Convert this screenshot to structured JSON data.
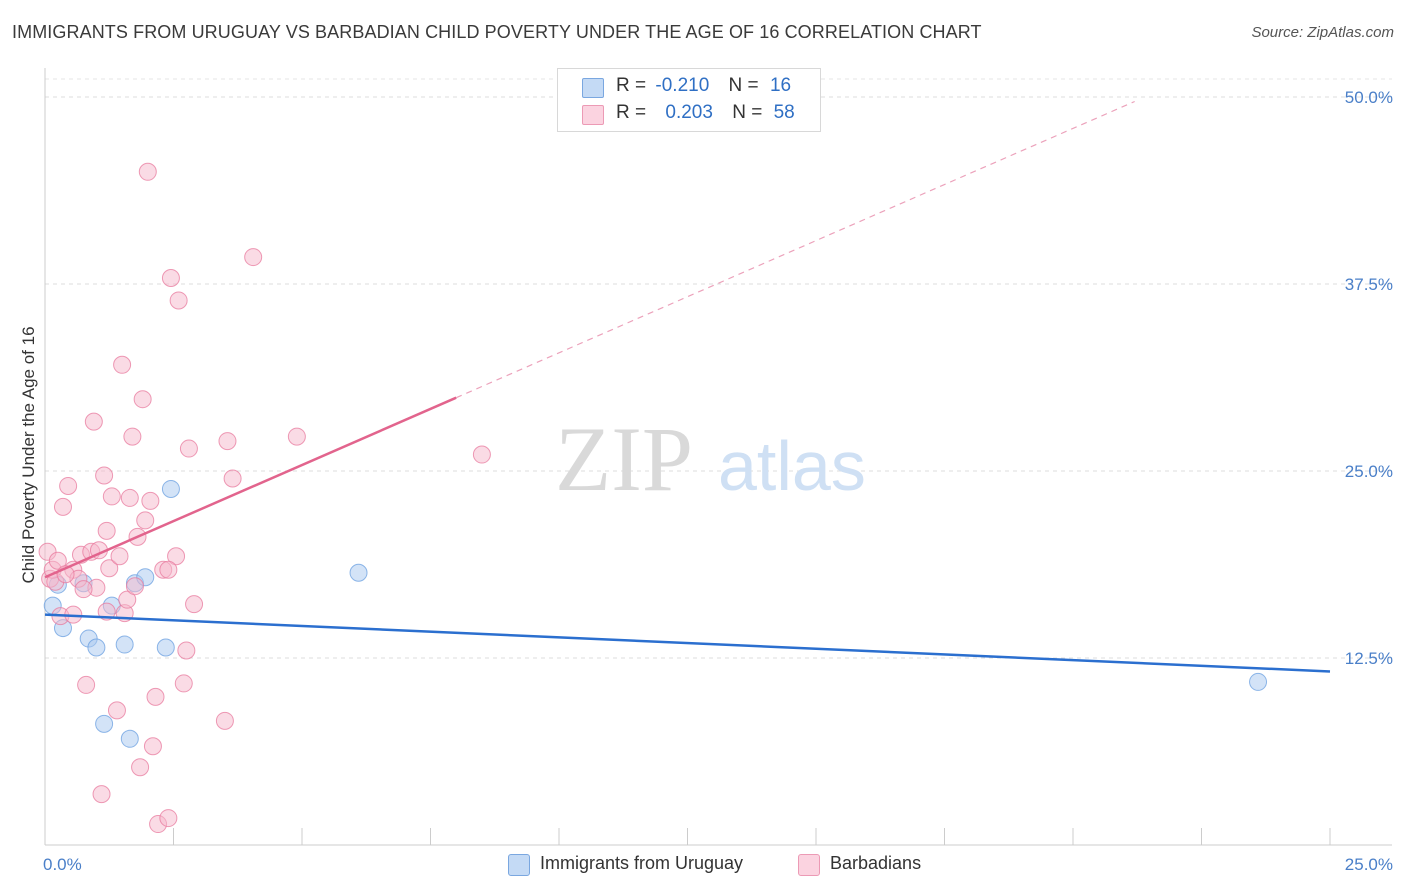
{
  "title": "IMMIGRANTS FROM URUGUAY VS BARBADIAN CHILD POVERTY UNDER THE AGE OF 16 CORRELATION CHART",
  "source": "Source: ZipAtlas.com",
  "watermark": {
    "zip": "ZIP",
    "atlas": "atlas"
  },
  "legend": {
    "rows": [
      {
        "r_label": "R =",
        "r_value": "-0.210",
        "n_label": "N =",
        "n_value": "16",
        "color": "#a8c8f0"
      },
      {
        "r_label": "R =",
        "r_value": "0.203",
        "n_label": "N =",
        "n_value": "58",
        "color": "#f5b8cc"
      }
    ]
  },
  "bottom_legend": [
    {
      "label": "Immigrants from Uruguay",
      "color": "#a8c8f0"
    },
    {
      "label": "Barbadians",
      "color": "#f5b8cc"
    }
  ],
  "chart_data": {
    "type": "scatter",
    "title": "IMMIGRANTS FROM URUGUAY VS BARBADIAN CHILD POVERTY UNDER THE AGE OF 16 CORRELATION CHART",
    "xlabel": "",
    "ylabel": "Child Poverty Under the Age of 16",
    "xlim": [
      0,
      25
    ],
    "ylim": [
      0,
      50
    ],
    "x_tick_labels": [
      "0.0%",
      "25.0%"
    ],
    "y_ticks": [
      12.5,
      25.0,
      37.5,
      50.0
    ],
    "y_tick_labels": [
      "12.5%",
      "25.0%",
      "37.5%",
      "50.0%"
    ],
    "grid": true,
    "series": [
      {
        "name": "Immigrants from Uruguay",
        "color": "#6a9fe0",
        "fill": "#a8c8f0",
        "points": [
          [
            0.15,
            16.0
          ],
          [
            0.25,
            17.4
          ],
          [
            0.35,
            14.5
          ],
          [
            0.75,
            17.5
          ],
          [
            0.85,
            13.8
          ],
          [
            1.0,
            13.2
          ],
          [
            1.3,
            16.0
          ],
          [
            1.55,
            13.4
          ],
          [
            1.75,
            17.5
          ],
          [
            1.95,
            17.9
          ],
          [
            2.35,
            13.2
          ],
          [
            2.45,
            23.8
          ],
          [
            1.15,
            8.1
          ],
          [
            1.65,
            7.1
          ],
          [
            6.1,
            18.2
          ],
          [
            23.6,
            10.9
          ]
        ],
        "trend": {
          "x": [
            0,
            25
          ],
          "y": [
            15.4,
            11.6
          ]
        }
      },
      {
        "name": "Barbadians",
        "color": "#e8799d",
        "fill": "#f5b8cc",
        "points": [
          [
            0.05,
            19.6
          ],
          [
            0.1,
            17.8
          ],
          [
            0.15,
            18.4
          ],
          [
            0.2,
            17.6
          ],
          [
            0.25,
            19.0
          ],
          [
            0.3,
            15.3
          ],
          [
            0.35,
            22.6
          ],
          [
            0.45,
            24.0
          ],
          [
            0.55,
            18.4
          ],
          [
            0.65,
            17.8
          ],
          [
            0.7,
            19.4
          ],
          [
            0.8,
            10.7
          ],
          [
            0.9,
            19.6
          ],
          [
            0.95,
            28.3
          ],
          [
            1.0,
            17.2
          ],
          [
            1.1,
            3.4
          ],
          [
            1.15,
            24.7
          ],
          [
            1.2,
            21.0
          ],
          [
            1.25,
            18.5
          ],
          [
            1.3,
            23.3
          ],
          [
            1.4,
            9.0
          ],
          [
            1.45,
            19.3
          ],
          [
            1.5,
            32.1
          ],
          [
            1.55,
            15.5
          ],
          [
            1.6,
            16.4
          ],
          [
            1.65,
            23.2
          ],
          [
            1.7,
            27.3
          ],
          [
            1.75,
            17.3
          ],
          [
            1.8,
            20.6
          ],
          [
            1.85,
            5.2
          ],
          [
            1.9,
            29.8
          ],
          [
            1.95,
            21.7
          ],
          [
            2.0,
            45.0
          ],
          [
            2.05,
            23.0
          ],
          [
            2.1,
            6.6
          ],
          [
            2.15,
            9.9
          ],
          [
            2.2,
            1.4
          ],
          [
            2.3,
            18.4
          ],
          [
            2.4,
            1.8
          ],
          [
            2.45,
            37.9
          ],
          [
            2.55,
            19.3
          ],
          [
            2.6,
            36.4
          ],
          [
            2.7,
            10.8
          ],
          [
            2.75,
            13.0
          ],
          [
            2.8,
            26.5
          ],
          [
            2.9,
            16.1
          ],
          [
            2.4,
            18.4
          ],
          [
            3.5,
            8.3
          ],
          [
            3.55,
            27.0
          ],
          [
            3.65,
            24.5
          ],
          [
            4.05,
            39.3
          ],
          [
            4.9,
            27.3
          ],
          [
            8.5,
            26.1
          ],
          [
            0.55,
            15.4
          ],
          [
            0.75,
            17.1
          ],
          [
            1.05,
            19.7
          ],
          [
            0.4,
            18.1
          ],
          [
            1.2,
            15.6
          ]
        ],
        "trend": {
          "x": [
            0,
            8.0
          ],
          "y": [
            17.9,
            29.9
          ]
        },
        "trend_dashed": {
          "x": [
            8.0,
            21.2
          ],
          "y": [
            29.9,
            49.7
          ]
        }
      }
    ]
  }
}
